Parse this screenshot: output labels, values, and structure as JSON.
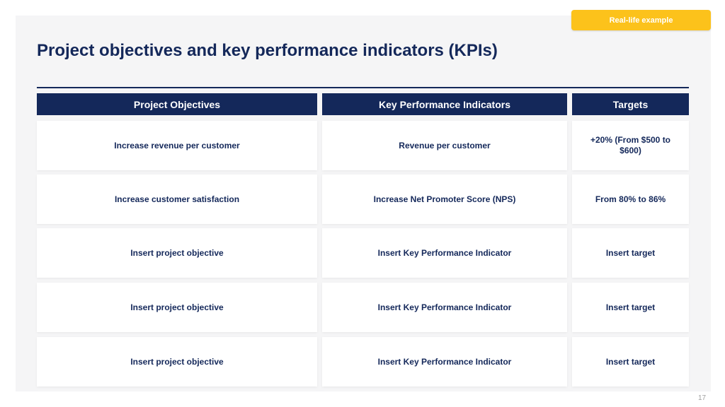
{
  "badge": {
    "label": "Real-life example"
  },
  "title": "Project objectives and key performance indicators (KPIs)",
  "table": {
    "headers": [
      "Project Objectives",
      "Key Performance Indicators",
      "Targets"
    ],
    "rows": [
      {
        "objective": "Increase revenue per customer",
        "kpi": "Revenue per customer",
        "target": "+20% (From $500 to $600)"
      },
      {
        "objective": "Increase customer satisfaction",
        "kpi": "Increase Net Promoter Score (NPS)",
        "target": "From 80% to 86%"
      },
      {
        "objective": "Insert project objective",
        "kpi": "Insert Key Performance Indicator",
        "target": "Insert target"
      },
      {
        "objective": "Insert project objective",
        "kpi": "Insert Key Performance Indicator",
        "target": "Insert target"
      },
      {
        "objective": "Insert project objective",
        "kpi": "Insert Key Performance Indicator",
        "target": "Insert target"
      }
    ]
  },
  "page_number": "17",
  "colors": {
    "navy": "#14285a",
    "badge": "#fcc21b",
    "panel": "#f5f5f6"
  }
}
